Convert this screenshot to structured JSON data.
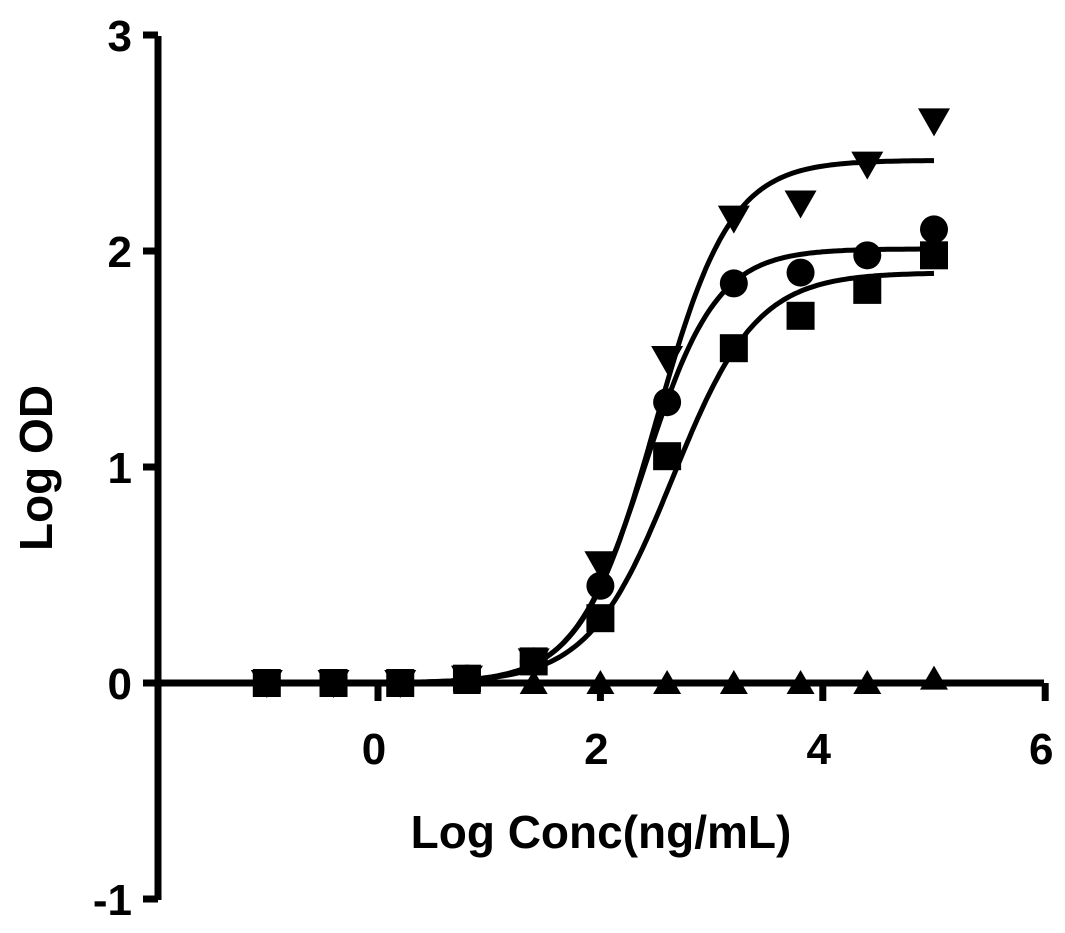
{
  "chart_data": {
    "type": "scatter",
    "title": "",
    "xlabel": "Log Conc(ng/mL)",
    "ylabel": "Log OD",
    "xlim": [
      -1.9,
      6
    ],
    "ylim": [
      -1,
      3
    ],
    "x_ticks": [
      0,
      2,
      4,
      6
    ],
    "y_ticks": [
      -1,
      0,
      1,
      2,
      3
    ],
    "x_tick_labels": [
      "0",
      "2",
      "4",
      "6"
    ],
    "y_tick_labels": [
      "-1",
      "0",
      "1",
      "2",
      "3"
    ],
    "grid": false,
    "legend": "none",
    "x": [
      -1.0,
      -0.4,
      0.2,
      0.8,
      1.4,
      2.0,
      2.6,
      3.2,
      3.8,
      4.4,
      5.0
    ],
    "series": [
      {
        "marker": "triangle-down",
        "values": [
          0.0,
          0.0,
          0.0,
          0.02,
          0.1,
          0.55,
          1.5,
          2.15,
          2.22,
          2.4,
          2.6
        ],
        "fit": {
          "bottom": 0.0,
          "top": 2.42,
          "logEC50": 2.5,
          "hill": 1.3
        }
      },
      {
        "marker": "circle",
        "values": [
          0.0,
          0.0,
          0.0,
          0.02,
          0.1,
          0.45,
          1.3,
          1.85,
          1.9,
          1.98,
          2.1
        ],
        "fit": {
          "bottom": 0.0,
          "top": 2.01,
          "logEC50": 2.4,
          "hill": 1.35
        }
      },
      {
        "marker": "square",
        "values": [
          0.0,
          0.0,
          0.0,
          0.02,
          0.1,
          0.3,
          1.05,
          1.55,
          1.7,
          1.82,
          1.98
        ],
        "fit": {
          "bottom": 0.0,
          "top": 1.9,
          "logEC50": 2.65,
          "hill": 1.15
        }
      },
      {
        "marker": "triangle-up",
        "values": [
          0.0,
          0.0,
          0.0,
          0.0,
          0.0,
          0.0,
          0.0,
          0.0,
          0.0,
          0.0,
          0.02
        ],
        "fit": {
          "bottom": 0.0,
          "top": 0.0,
          "logEC50": 2.5,
          "hill": 1.0
        }
      }
    ]
  }
}
